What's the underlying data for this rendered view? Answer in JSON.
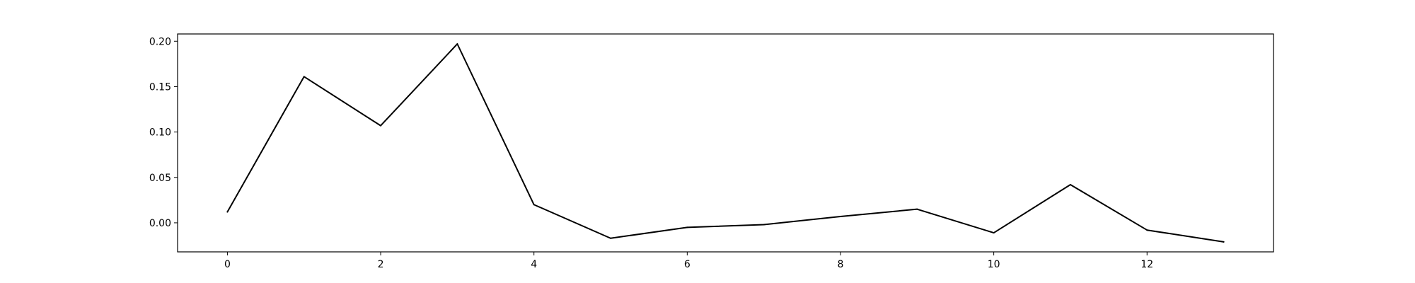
{
  "chart_data": {
    "type": "line",
    "title": "",
    "xlabel": "",
    "ylabel": "",
    "x": [
      0,
      1,
      2,
      3,
      4,
      5,
      6,
      7,
      8,
      9,
      10,
      11,
      12,
      13
    ],
    "series": [
      {
        "values": [
          0.012,
          0.161,
          0.107,
          0.197,
          0.02,
          -0.017,
          -0.005,
          -0.002,
          0.007,
          0.015,
          -0.011,
          0.042,
          -0.008,
          -0.021
        ],
        "color": "#000000"
      }
    ],
    "xlim": [
      -0.65,
      13.65
    ],
    "ylim": [
      -0.032,
      0.208
    ],
    "x_ticks": [
      "0",
      "2",
      "4",
      "6",
      "8",
      "10",
      "12"
    ],
    "y_ticks": [
      "0.00",
      "0.05",
      "0.10",
      "0.15",
      "0.20"
    ],
    "grid": false,
    "legend": "none"
  }
}
